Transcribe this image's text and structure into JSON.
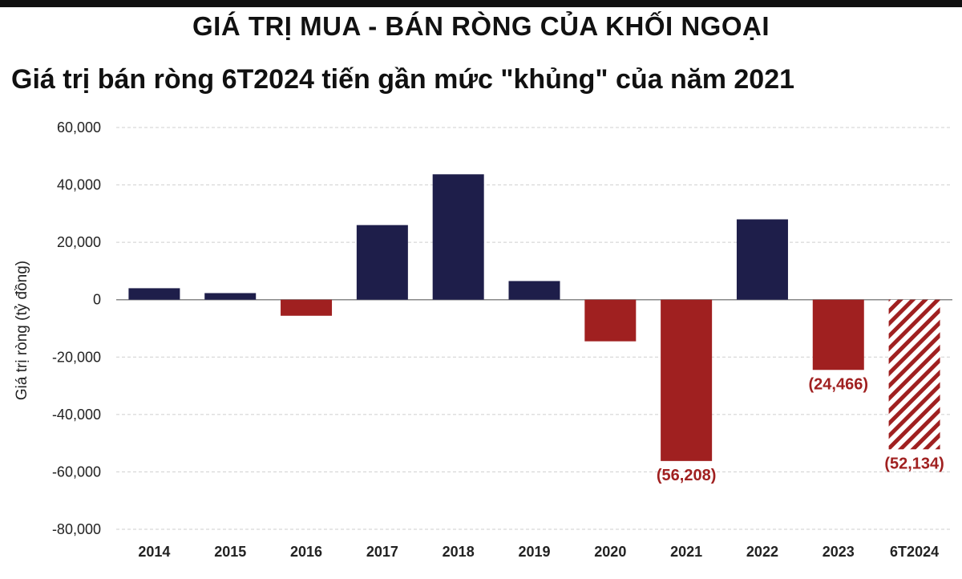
{
  "header": {
    "title": "GIÁ TRỊ MUA - BÁN RÒNG CỦA KHỐI NGOẠI"
  },
  "chart_data": {
    "type": "bar",
    "title": "Giá trị bán ròng 6T2024 tiến gần mức \"khủng\" của năm 2021",
    "ylabel": "Giá trị ròng (tỷ đồng)",
    "xlabel": "",
    "ylim": [
      -80000,
      60000
    ],
    "yticks": [
      60000,
      40000,
      20000,
      0,
      -20000,
      -40000,
      -60000,
      -80000
    ],
    "ytick_labels": [
      "60,000",
      "40,000",
      "20,000",
      "0",
      "-20,000",
      "-40,000",
      "-60,000",
      "-80,000"
    ],
    "grid": true,
    "categories": [
      "2014",
      "2015",
      "2016",
      "2017",
      "2018",
      "2019",
      "2020",
      "2021",
      "2022",
      "2023",
      "6T2024"
    ],
    "values": [
      4000,
      2300,
      -5600,
      26000,
      43700,
      6500,
      -14500,
      -56208,
      28000,
      -24466,
      -52134
    ],
    "data_labels": [
      "",
      "",
      "",
      "",
      "",
      "",
      "",
      "(56,208)",
      "",
      "(24,466)",
      "(52,134)"
    ],
    "hatched": [
      false,
      false,
      false,
      false,
      false,
      false,
      false,
      false,
      false,
      false,
      true
    ],
    "colors": {
      "positive": "#1e1e4a",
      "negative": "#a02020",
      "label": "#a02020",
      "grid": "#cfcfcf",
      "axis": "#888888"
    }
  }
}
